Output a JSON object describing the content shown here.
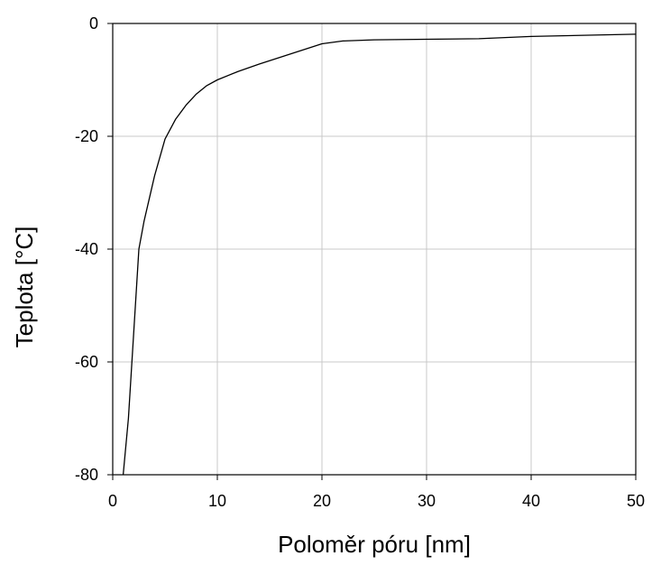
{
  "chart_data": {
    "type": "line",
    "title": "",
    "xlabel": "Poloměr póru [nm]",
    "ylabel": "Teplota [°C]",
    "xlim": [
      0,
      50
    ],
    "ylim": [
      -80,
      0
    ],
    "xticks": [
      0,
      10,
      20,
      30,
      40,
      50
    ],
    "yticks": [
      0,
      -20,
      -40,
      -60,
      -80
    ],
    "grid": true,
    "series": [
      {
        "color": "#000000",
        "points": [
          [
            1.0,
            -80
          ],
          [
            1.5,
            -70
          ],
          [
            2.0,
            -55
          ],
          [
            2.5,
            -40
          ],
          [
            3.0,
            -35
          ],
          [
            4.0,
            -27
          ],
          [
            5.0,
            -20.5
          ],
          [
            6.0,
            -17
          ],
          [
            7.0,
            -14.5
          ],
          [
            8.0,
            -12.5
          ],
          [
            9.0,
            -11
          ],
          [
            10.0,
            -10
          ],
          [
            12.0,
            -8.5
          ],
          [
            14.0,
            -7.2
          ],
          [
            16.0,
            -6
          ],
          [
            18.0,
            -4.8
          ],
          [
            20.0,
            -3.6
          ],
          [
            22.0,
            -3.1
          ],
          [
            25.0,
            -2.9
          ],
          [
            30.0,
            -2.8
          ],
          [
            35.0,
            -2.7
          ],
          [
            40.0,
            -2.3
          ],
          [
            45.0,
            -2.1
          ],
          [
            50.0,
            -1.9
          ]
        ]
      }
    ]
  }
}
